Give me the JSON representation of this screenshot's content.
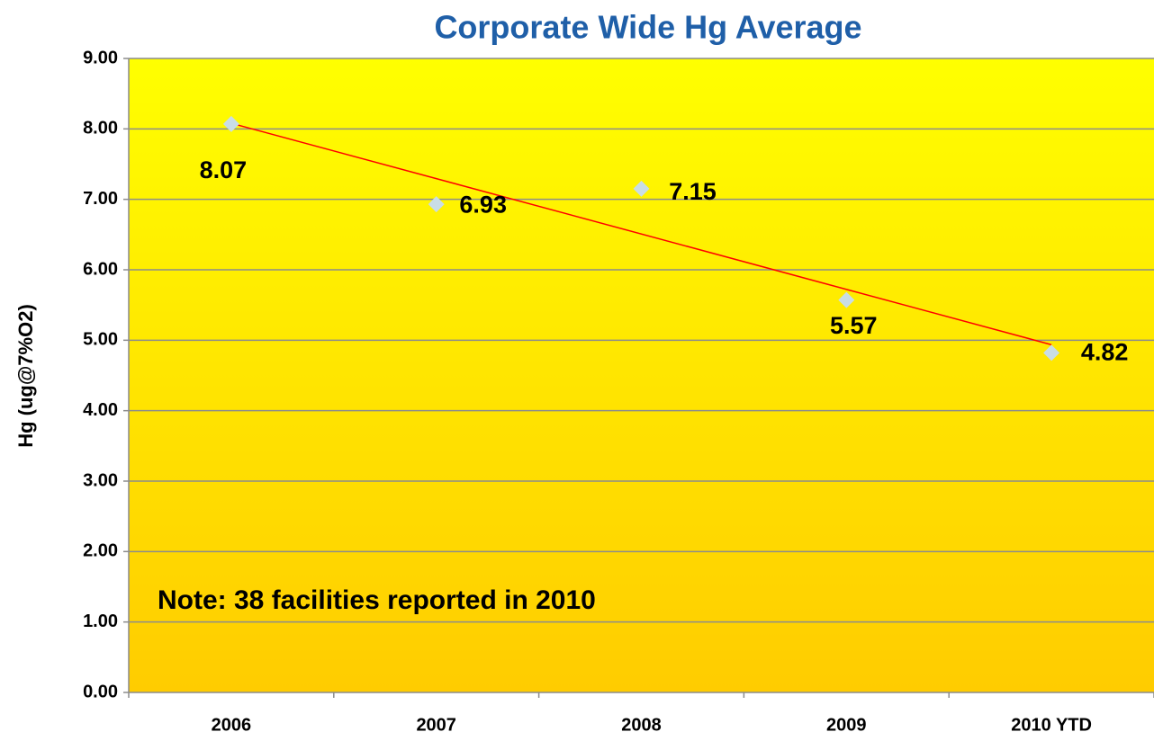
{
  "chart_data": {
    "type": "scatter",
    "title": "Corporate Wide Hg Average",
    "y_label": "Hg (ug@7%O2)",
    "annotation": "Note:  38 facilities reported in 2010",
    "categories": [
      "2006",
      "2007",
      "2008",
      "2009",
      "2010 YTD"
    ],
    "values": [
      8.07,
      6.93,
      7.15,
      5.57,
      4.82
    ],
    "color": "#c9dde6",
    "trendline": "linear",
    "trendline_color": "#ff0000",
    "ylim": [
      0,
      9
    ],
    "yticks": [
      {
        "value": 0,
        "label": "0.00"
      },
      {
        "value": 1,
        "label": "1.00"
      },
      {
        "value": 2,
        "label": "2.00"
      },
      {
        "value": 3,
        "label": "3.00"
      },
      {
        "value": 4,
        "label": "4.00"
      },
      {
        "value": 5,
        "label": "5.00"
      },
      {
        "value": 6,
        "label": "6.00"
      },
      {
        "value": 7,
        "label": "7.00"
      },
      {
        "value": 8,
        "label": "8.00"
      },
      {
        "value": 9,
        "label": "9.00"
      }
    ],
    "grid": true
  }
}
